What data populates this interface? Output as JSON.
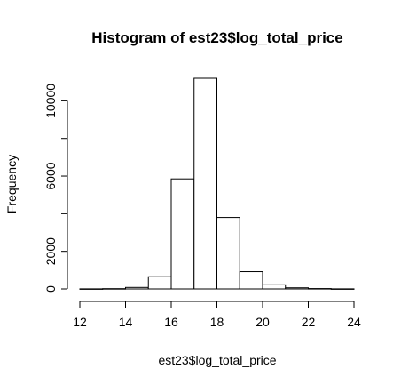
{
  "chart_data": {
    "type": "bar",
    "title": "Histogram of est23$log_total_price",
    "xlabel": "est23$log_total_price",
    "ylabel": "Frequency",
    "xlim": [
      12,
      24
    ],
    "ylim": [
      0,
      11200
    ],
    "x_ticks": [
      12,
      14,
      16,
      18,
      20,
      22,
      24
    ],
    "y_ticks": [
      0,
      2000,
      6000,
      10000
    ],
    "bins": [
      {
        "from": 12,
        "to": 13,
        "count": 5
      },
      {
        "from": 13,
        "to": 14,
        "count": 15
      },
      {
        "from": 14,
        "to": 15,
        "count": 80
      },
      {
        "from": 15,
        "to": 16,
        "count": 650
      },
      {
        "from": 16,
        "to": 17,
        "count": 5850
      },
      {
        "from": 17,
        "to": 18,
        "count": 11200
      },
      {
        "from": 18,
        "to": 19,
        "count": 3800
      },
      {
        "from": 19,
        "to": 20,
        "count": 920
      },
      {
        "from": 20,
        "to": 21,
        "count": 220
      },
      {
        "from": 21,
        "to": 22,
        "count": 60
      },
      {
        "from": 22,
        "to": 23,
        "count": 20
      },
      {
        "from": 23,
        "to": 24,
        "count": 5
      }
    ],
    "grid": false,
    "legend": "none"
  }
}
